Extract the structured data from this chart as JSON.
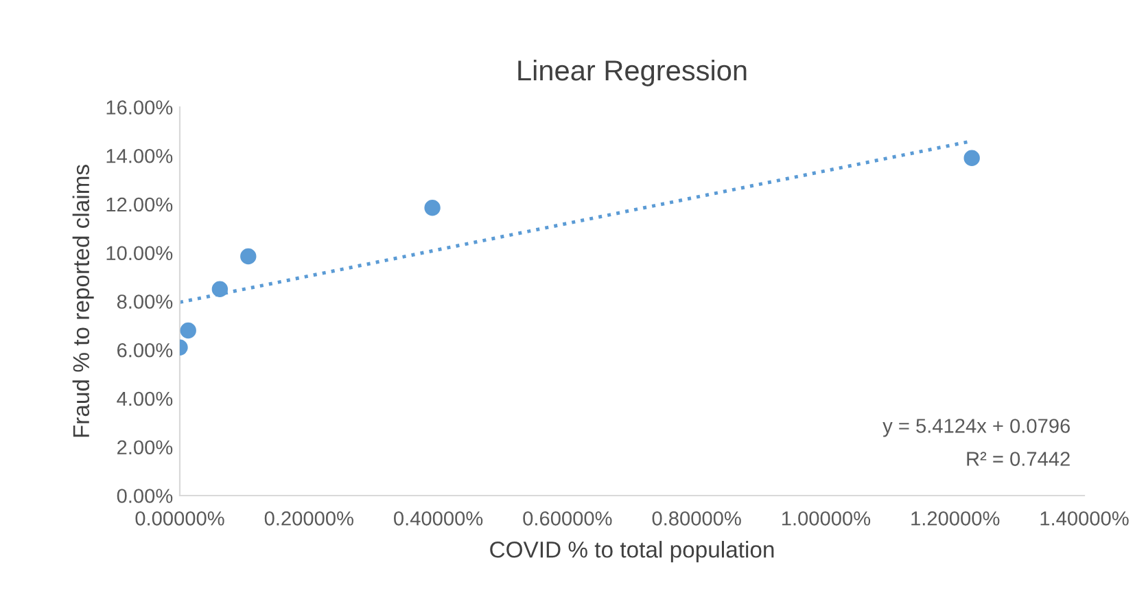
{
  "chart_data": {
    "type": "scatter",
    "title": "Linear Regression",
    "xlabel": "COVID % to total population",
    "ylabel": "Fraud % to reported claims",
    "series": [
      {
        "color": "#5b9bd5",
        "x": [
          0.0,
          0.013,
          0.062,
          0.106,
          0.391,
          1.226
        ],
        "values": [
          6.1,
          6.8,
          8.5,
          9.85,
          11.85,
          13.9
        ],
        "marker": "circle"
      },
      {
        "type": "line",
        "color": "#5b9bd5",
        "x": [
          0.0,
          1.226
        ],
        "values": [
          7.96,
          14.6
        ],
        "line_style": "dotted",
        "marker": "none"
      }
    ],
    "xlim": [
      0,
      1.4
    ],
    "ylim": [
      0,
      16
    ],
    "xticks": [
      {
        "value": 0,
        "label": "0.00000%"
      },
      {
        "value": 0.2,
        "label": "0.20000%"
      },
      {
        "value": 0.4,
        "label": "0.40000%"
      },
      {
        "value": 0.6,
        "label": "0.60000%"
      },
      {
        "value": 0.8,
        "label": "0.80000%"
      },
      {
        "value": 1.0,
        "label": "1.00000%"
      },
      {
        "value": 1.2,
        "label": "1.20000%"
      },
      {
        "value": 1.4,
        "label": "1.40000%"
      }
    ],
    "yticks": [
      {
        "value": 0,
        "label": "0.00%"
      },
      {
        "value": 2,
        "label": "2.00%"
      },
      {
        "value": 4,
        "label": "4.00%"
      },
      {
        "value": 6,
        "label": "6.00%"
      },
      {
        "value": 8,
        "label": "8.00%"
      },
      {
        "value": 10,
        "label": "10.00%"
      },
      {
        "value": 12,
        "label": "12.00%"
      },
      {
        "value": 14,
        "label": "14.00%"
      },
      {
        "value": 16,
        "label": "16.00%"
      }
    ],
    "annotations": [
      "y = 5.4124x + 0.0796",
      "R² = 0.7442"
    ],
    "grid": false,
    "legend": false
  }
}
